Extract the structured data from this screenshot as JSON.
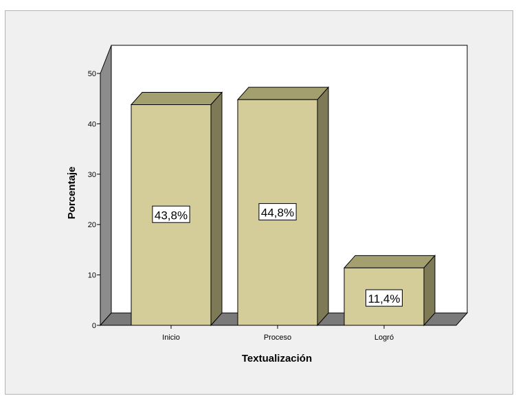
{
  "chart_data": {
    "type": "bar",
    "style": "3d",
    "categories": [
      "Inicio",
      "Proceso",
      "Logró"
    ],
    "values": [
      43.8,
      44.8,
      11.4
    ],
    "data_labels": [
      "43,8%",
      "44,8%",
      "11,4%"
    ],
    "xlabel": "Textualización",
    "ylabel": "Porcentaje",
    "ylim": [
      0,
      50
    ],
    "yticks": [
      "0",
      "10",
      "20",
      "30",
      "40",
      "50"
    ],
    "grid": false,
    "colors": {
      "bar_front": "#d4cc99",
      "bar_top": "#a49f6e",
      "bar_side": "#7e7a56",
      "wall": "#ffffff",
      "wall_side": "#8c8c8c",
      "floor": "#7a7a7a",
      "background": "#f0f0f0"
    }
  }
}
